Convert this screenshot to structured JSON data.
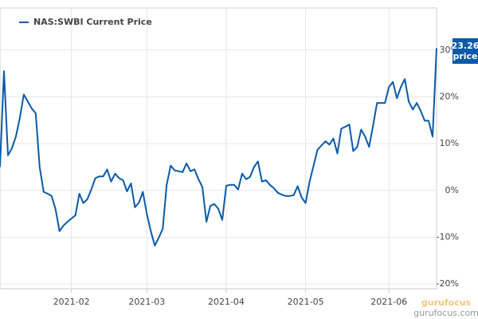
{
  "chart_data": {
    "type": "line",
    "categories": [
      null,
      null,
      null,
      null,
      null,
      null,
      null,
      null,
      null,
      null,
      null,
      null,
      null,
      null,
      null,
      null,
      null,
      null,
      "2021-02",
      null,
      null,
      null,
      null,
      null,
      null,
      null,
      null,
      null,
      null,
      null,
      null,
      null,
      null,
      null,
      null,
      null,
      null,
      "2021-03",
      null,
      null,
      null,
      null,
      null,
      null,
      null,
      null,
      null,
      null,
      null,
      null,
      null,
      null,
      null,
      null,
      null,
      null,
      null,
      "2021-04",
      null,
      null,
      null,
      null,
      null,
      null,
      null,
      null,
      null,
      null,
      null,
      null,
      null,
      null,
      null,
      null,
      null,
      null,
      null,
      "2021-05",
      null,
      null,
      null,
      null,
      null,
      null,
      null,
      null,
      null,
      null,
      null,
      null,
      null,
      null,
      null,
      null,
      null,
      null,
      null,
      null,
      "2021-06",
      null,
      null,
      null,
      null,
      null,
      null,
      null,
      null,
      null,
      null,
      null,
      null
    ],
    "series": [
      {
        "name": "NAS:SWBI Current Price",
        "color": "#0a5aa8",
        "values": [
          5,
          25.5,
          7.5,
          9,
          11.5,
          15.5,
          20.5,
          19,
          17.5,
          16.5,
          5,
          -0.3,
          -0.7,
          -1.2,
          -4,
          -8.7,
          -7.5,
          -6.7,
          -6,
          -5.3,
          -0.7,
          -2.7,
          -1.9,
          0.2,
          2.6,
          3,
          3,
          4.5,
          1.9,
          3.6,
          2.6,
          2.2,
          -0.2,
          1.5,
          -3.6,
          -2.6,
          -0.3,
          -5,
          -8.7,
          -11.8,
          -10.1,
          -8.2,
          1.2,
          5.3,
          4.3,
          4.1,
          3.9,
          5.8,
          4.1,
          4.5,
          2.4,
          0.7,
          -6.7,
          -3.3,
          -2.9,
          -3.9,
          -6.3,
          1,
          1.2,
          1.2,
          0.2,
          3.6,
          2.4,
          2.9,
          5,
          6.2,
          1.9,
          2.2,
          1.2,
          0.5,
          -0.5,
          -0.9,
          -1.2,
          -1.2,
          -1,
          0.9,
          -1.5,
          -2.7,
          1.9,
          5.3,
          8.7,
          9.6,
          10.5,
          9.8,
          11.1,
          7.9,
          13.2,
          13.6,
          14.1,
          8.4,
          9.3,
          13,
          11.5,
          9.3,
          13.9,
          18.7,
          18.7,
          18.7,
          22.1,
          23.2,
          19.7,
          22.1,
          23.8,
          19,
          17.3,
          18.7,
          17,
          14.9,
          14.9,
          11.5,
          30.4
        ]
      }
    ],
    "ylim": [
      -21,
      39
    ],
    "yticks": [
      {
        "value": -20,
        "label": "-20%"
      },
      {
        "value": -10,
        "label": "-10%"
      },
      {
        "value": 0,
        "label": "0%"
      },
      {
        "value": 10,
        "label": "10%"
      },
      {
        "value": 20,
        "label": "20%"
      },
      {
        "value": 30,
        "label": "30%"
      }
    ],
    "grid": true,
    "legend": "top-left",
    "current_price": "23.26",
    "current_price_label": "price",
    "watermark": "gurufocus",
    "watermark_url": "gurufocus.com"
  }
}
